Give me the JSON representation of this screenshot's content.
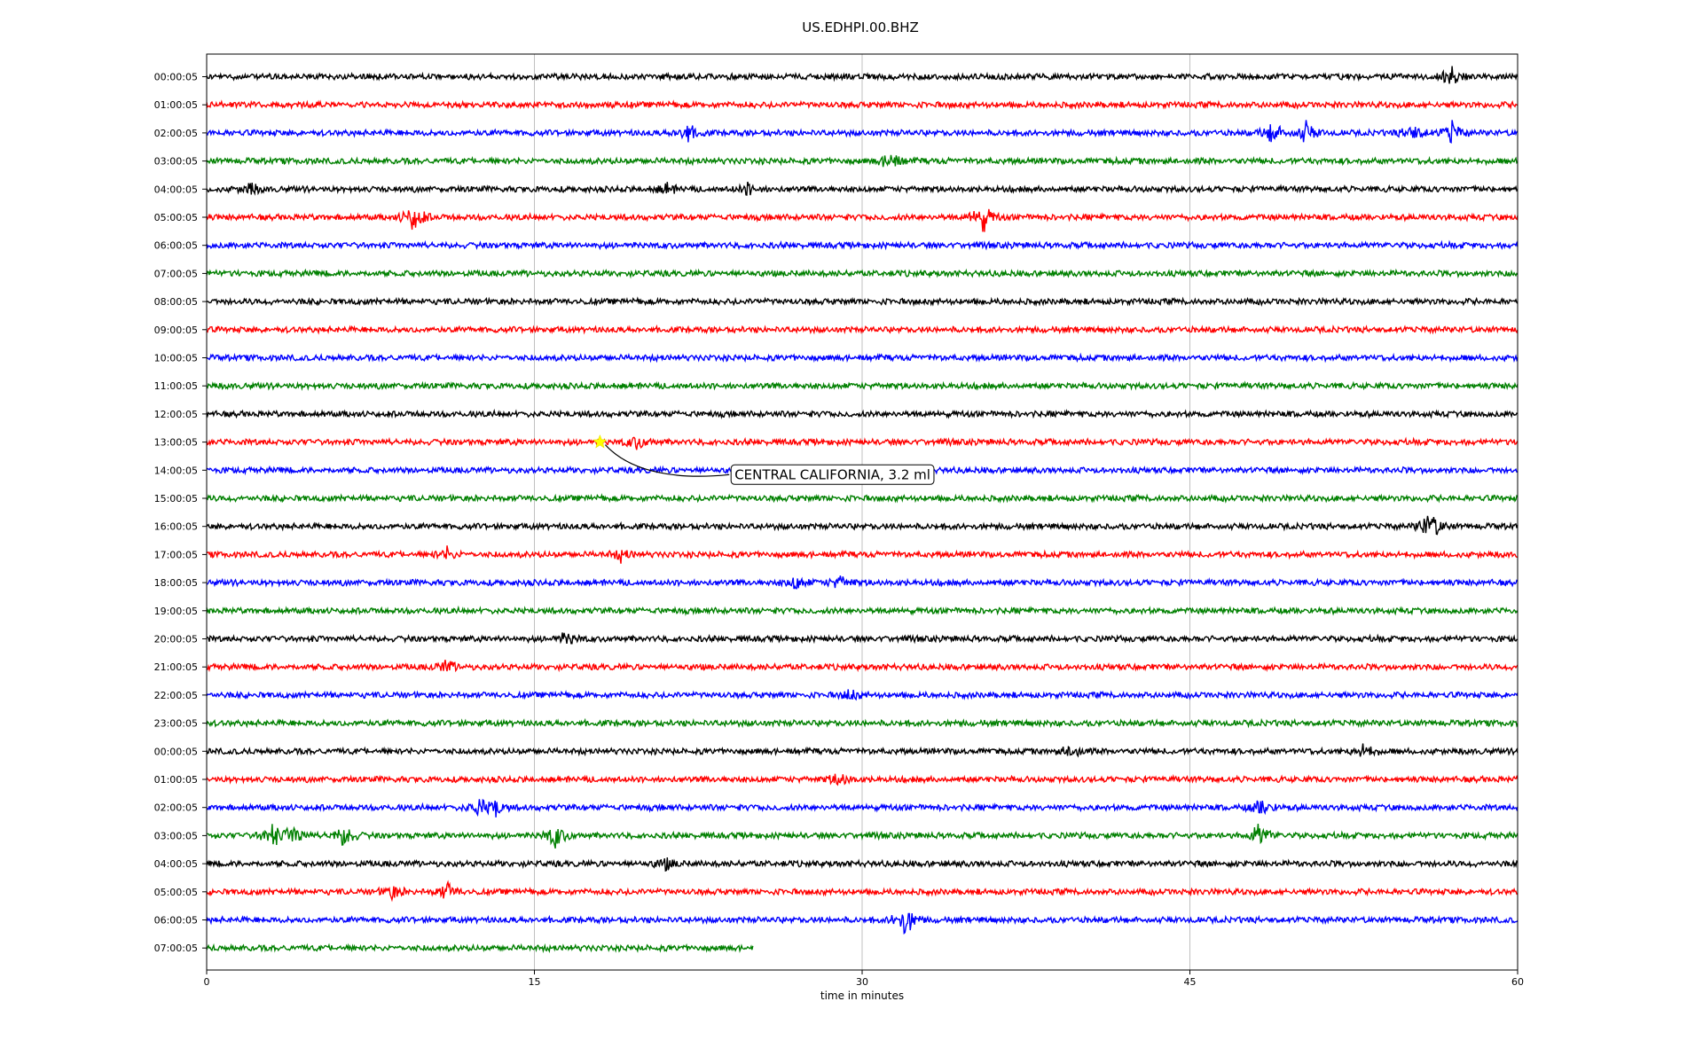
{
  "chart_data": {
    "type": "line",
    "title": "US.EDHPI.00.BHZ",
    "xlabel": "time in minutes",
    "ylabel": "",
    "xlim": [
      0,
      60
    ],
    "x_ticks": [
      "0",
      "15",
      "30",
      "45",
      "60"
    ],
    "x_tick_values": [
      0,
      15,
      30,
      45,
      60
    ],
    "grid": "vertical",
    "row_labels": [
      "00:00:05",
      "01:00:05",
      "02:00:05",
      "03:00:05",
      "04:00:05",
      "05:00:05",
      "06:00:05",
      "07:00:05",
      "08:00:05",
      "09:00:05",
      "10:00:05",
      "11:00:05",
      "12:00:05",
      "13:00:05",
      "14:00:05",
      "15:00:05",
      "16:00:05",
      "17:00:05",
      "18:00:05",
      "19:00:05",
      "20:00:05",
      "21:00:05",
      "22:00:05",
      "23:00:05",
      "00:00:05",
      "01:00:05",
      "02:00:05",
      "03:00:05",
      "04:00:05",
      "05:00:05",
      "06:00:05",
      "07:00:05"
    ],
    "trace_colors": [
      "#000000",
      "#ff0000",
      "#0000ff",
      "#008000"
    ],
    "last_trace_end_minutes": 25,
    "events": [
      {
        "row": 0,
        "at": [
          57
        ],
        "amp": 2.2
      },
      {
        "row": 2,
        "at": [
          22,
          48.8,
          50.3,
          55.2,
          57
        ],
        "amp": 2.2
      },
      {
        "row": 3,
        "at": [
          31.3
        ],
        "amp": 2.0
      },
      {
        "row": 4,
        "at": [
          2,
          21,
          24.8
        ],
        "amp": 1.2
      },
      {
        "row": 5,
        "at": [
          9.5,
          35.5
        ],
        "amp": 3.2
      },
      {
        "row": 13,
        "at": [
          19.7
        ],
        "amp": 1.6
      },
      {
        "row": 16,
        "at": [
          56
        ],
        "amp": 3.6
      },
      {
        "row": 17,
        "at": [
          11,
          19
        ],
        "amp": 1.3
      },
      {
        "row": 18,
        "at": [
          27,
          29
        ],
        "amp": 1.6
      },
      {
        "row": 20,
        "at": [
          16.5
        ],
        "amp": 1.3
      },
      {
        "row": 21,
        "at": [
          11
        ],
        "amp": 1.4
      },
      {
        "row": 22,
        "at": [
          29.5
        ],
        "amp": 1.2
      },
      {
        "row": 24,
        "at": [
          39.6,
          53
        ],
        "amp": 1.6
      },
      {
        "row": 25,
        "at": [
          29
        ],
        "amp": 1.6
      },
      {
        "row": 26,
        "at": [
          12.5,
          13.2,
          48.3
        ],
        "amp": 2.0
      },
      {
        "row": 27,
        "at": [
          3,
          4,
          6.3,
          16,
          48.2
        ],
        "amp": 2.6
      },
      {
        "row": 28,
        "at": [
          21
        ],
        "amp": 1.3
      },
      {
        "row": 29,
        "at": [
          8.5,
          11
        ],
        "amp": 1.8
      },
      {
        "row": 30,
        "at": [
          32
        ],
        "amp": 4.2
      }
    ],
    "annotation": {
      "text": "CENTRAL CALIFORNIA, 3.2 ml",
      "row": 13,
      "minute": 18,
      "marker": "star",
      "marker_color": "#ffff00"
    }
  }
}
